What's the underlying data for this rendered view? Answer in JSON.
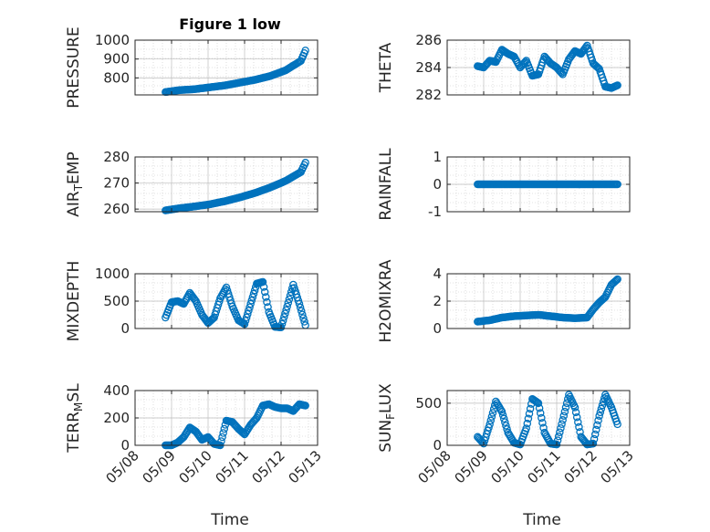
{
  "figure": {
    "title": "Figure 1 low",
    "xlabel": "Time"
  },
  "chart_data": [
    {
      "type": "scatter",
      "title": "Figure 1 low",
      "ylabel": "PRESSURE",
      "xlim": [
        "05/08",
        "05/13"
      ],
      "xticks": [
        "05/08",
        "05/09",
        "05/10",
        "05/11",
        "05/12",
        "05/13"
      ],
      "ylim": [
        710,
        1000
      ],
      "yticks": [
        800,
        900,
        1000
      ],
      "grid": true,
      "x": [
        "05/08 20:00",
        "05/09 05:00",
        "05/09 15:00",
        "05/10 01:00",
        "05/10 11:00",
        "05/10 21:00",
        "05/11 07:00",
        "05/11 17:00",
        "05/12 03:00",
        "05/12 13:00",
        "05/12 16:00"
      ],
      "y": [
        725,
        735,
        740,
        750,
        760,
        775,
        790,
        810,
        840,
        890,
        945
      ]
    },
    {
      "type": "scatter",
      "ylabel": "THETA",
      "xlim": [
        "05/08",
        "05/13"
      ],
      "xticks": [
        "05/08",
        "05/09",
        "05/10",
        "05/11",
        "05/12",
        "05/13"
      ],
      "ylim": [
        282,
        286
      ],
      "yticks": [
        282,
        284,
        286
      ],
      "grid": true,
      "x": [
        "05/08 20:00",
        "05/09 00:00",
        "05/09 04:00",
        "05/09 08:00",
        "05/09 12:00",
        "05/09 16:00",
        "05/09 20:00",
        "05/10 00:00",
        "05/10 04:00",
        "05/10 08:00",
        "05/10 12:00",
        "05/10 16:00",
        "05/10 20:00",
        "05/11 00:00",
        "05/11 04:00",
        "05/11 08:00",
        "05/11 12:00",
        "05/11 16:00",
        "05/11 20:00",
        "05/12 00:00",
        "05/12 04:00",
        "05/12 08:00",
        "05/12 12:00",
        "05/12 16:00"
      ],
      "y": [
        284.1,
        284.0,
        284.5,
        284.4,
        285.3,
        285.0,
        284.8,
        284.0,
        284.5,
        283.4,
        283.5,
        284.8,
        284.3,
        284.0,
        283.5,
        284.6,
        285.2,
        285.0,
        285.6,
        284.3,
        283.9,
        282.6,
        282.5,
        282.7
      ]
    },
    {
      "type": "scatter",
      "ylabel": "AIR_TEMP",
      "xlim": [
        "05/08",
        "05/13"
      ],
      "xticks": [
        "05/08",
        "05/09",
        "05/10",
        "05/11",
        "05/12",
        "05/13"
      ],
      "ylim": [
        259,
        280
      ],
      "yticks": [
        260,
        270,
        280
      ],
      "grid": true,
      "x": [
        "05/08 20:00",
        "05/09 05:00",
        "05/09 15:00",
        "05/10 01:00",
        "05/10 11:00",
        "05/10 21:00",
        "05/11 07:00",
        "05/11 17:00",
        "05/12 03:00",
        "05/12 13:00",
        "05/12 16:00"
      ],
      "y": [
        259.5,
        260.3,
        261.0,
        261.8,
        263.0,
        264.5,
        266.2,
        268.3,
        270.8,
        274.2,
        277.8
      ]
    },
    {
      "type": "scatter",
      "ylabel": "RAINFALL",
      "xlim": [
        "05/08",
        "05/13"
      ],
      "xticks": [
        "05/08",
        "05/09",
        "05/10",
        "05/11",
        "05/12",
        "05/13"
      ],
      "ylim": [
        -1,
        1
      ],
      "yticks": [
        -1,
        0,
        1
      ],
      "grid": true,
      "x": [
        "05/08 20:00",
        "05/12 16:00"
      ],
      "y": [
        0,
        0
      ]
    },
    {
      "type": "scatter",
      "ylabel": "MIXDEPTH",
      "xlim": [
        "05/08",
        "05/13"
      ],
      "xticks": [
        "05/08",
        "05/09",
        "05/10",
        "05/11",
        "05/12",
        "05/13"
      ],
      "ylim": [
        0,
        1000
      ],
      "yticks": [
        0,
        500,
        1000
      ],
      "grid": true,
      "x": [
        "05/08 20:00",
        "05/09 00:00",
        "05/09 04:00",
        "05/09 08:00",
        "05/09 12:00",
        "05/09 16:00",
        "05/09 20:00",
        "05/10 00:00",
        "05/10 04:00",
        "05/10 08:00",
        "05/10 12:00",
        "05/10 16:00",
        "05/10 20:00",
        "05/11 00:00",
        "05/11 04:00",
        "05/11 08:00",
        "05/11 12:00",
        "05/11 16:00",
        "05/11 20:00",
        "05/12 00:00",
        "05/12 04:00",
        "05/12 08:00",
        "05/12 12:00",
        "05/12 16:00"
      ],
      "y": [
        200,
        480,
        500,
        450,
        650,
        500,
        250,
        100,
        200,
        550,
        750,
        400,
        150,
        80,
        450,
        820,
        850,
        300,
        30,
        20,
        400,
        800,
        450,
        60
      ]
    },
    {
      "type": "scatter",
      "ylabel": "H2OMIXRA",
      "xlim": [
        "05/08",
        "05/13"
      ],
      "xticks": [
        "05/08",
        "05/09",
        "05/10",
        "05/11",
        "05/12",
        "05/13"
      ],
      "ylim": [
        0,
        4
      ],
      "yticks": [
        0,
        2,
        4
      ],
      "grid": true,
      "x": [
        "05/08 20:00",
        "05/09 04:00",
        "05/09 12:00",
        "05/09 20:00",
        "05/10 04:00",
        "05/10 12:00",
        "05/10 20:00",
        "05/11 04:00",
        "05/11 12:00",
        "05/11 20:00",
        "05/12 00:00",
        "05/12 04:00",
        "05/12 08:00",
        "05/12 12:00",
        "05/12 16:00"
      ],
      "y": [
        0.5,
        0.6,
        0.8,
        0.9,
        0.95,
        1.0,
        0.9,
        0.8,
        0.75,
        0.8,
        1.4,
        1.9,
        2.3,
        3.2,
        3.6
      ]
    },
    {
      "type": "scatter",
      "ylabel": "TERR_MSL",
      "xlim": [
        "05/08",
        "05/13"
      ],
      "xticks": [
        "05/08",
        "05/09",
        "05/10",
        "05/11",
        "05/12",
        "05/13"
      ],
      "ylim": [
        0,
        400
      ],
      "yticks": [
        0,
        200,
        400
      ],
      "grid": true,
      "x": [
        "05/08 20:00",
        "05/09 00:00",
        "05/09 04:00",
        "05/09 08:00",
        "05/09 12:00",
        "05/09 16:00",
        "05/09 20:00",
        "05/10 00:00",
        "05/10 04:00",
        "05/10 08:00",
        "05/10 12:00",
        "05/10 16:00",
        "05/10 20:00",
        "05/11 00:00",
        "05/11 04:00",
        "05/11 08:00",
        "05/11 12:00",
        "05/11 16:00",
        "05/11 20:00",
        "05/12 00:00",
        "05/12 04:00",
        "05/12 08:00",
        "05/12 12:00",
        "05/12 16:00"
      ],
      "y": [
        0,
        0,
        20,
        60,
        130,
        100,
        40,
        60,
        10,
        0,
        180,
        170,
        120,
        80,
        150,
        200,
        290,
        300,
        280,
        270,
        270,
        250,
        300,
        290
      ]
    },
    {
      "type": "scatter",
      "ylabel": "SUN_FLUX",
      "xlim": [
        "05/08",
        "05/13"
      ],
      "xticks": [
        "05/08",
        "05/09",
        "05/10",
        "05/11",
        "05/12",
        "05/13"
      ],
      "ylim": [
        0,
        650
      ],
      "yticks": [
        0,
        500
      ],
      "grid": true,
      "x": [
        "05/08 20:00",
        "05/09 00:00",
        "05/09 04:00",
        "05/09 08:00",
        "05/09 12:00",
        "05/09 16:00",
        "05/09 20:00",
        "05/10 00:00",
        "05/10 04:00",
        "05/10 08:00",
        "05/10 12:00",
        "05/10 16:00",
        "05/10 20:00",
        "05/11 00:00",
        "05/11 04:00",
        "05/11 08:00",
        "05/11 12:00",
        "05/11 16:00",
        "05/11 20:00",
        "05/12 00:00",
        "05/12 04:00",
        "05/12 08:00",
        "05/12 12:00",
        "05/12 16:00"
      ],
      "y": [
        100,
        20,
        250,
        520,
        400,
        150,
        30,
        10,
        200,
        550,
        500,
        150,
        20,
        10,
        300,
        600,
        450,
        100,
        10,
        20,
        350,
        600,
        450,
        250
      ]
    }
  ]
}
